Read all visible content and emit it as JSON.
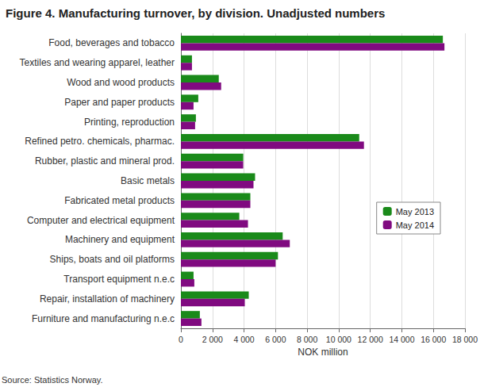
{
  "chart_data": {
    "type": "bar",
    "orientation": "horizontal",
    "title": "Figure 4. Manufacturing turnover, by division. Unadjusted numbers",
    "xlabel": "NOK million",
    "note": "Source: Statistics Norway.",
    "categories": [
      "Food, beverages and tobacco",
      "Textiles and wearing apparel, leather",
      "Wood and wood products",
      "Paper and paper products",
      "Printing, reproduction",
      "Refined petro. chemicals, pharmac.",
      "Rubber, plastic and mineral prod.",
      "Basic metals",
      "Fabricated metal products",
      "Computer and electrical equipment",
      "Machinery and equipment",
      "Ships, boats and oil platforms",
      "Transport equipment n.e.c",
      "Repair, installation of machinery",
      "Furniture and manufacturing n.e.c"
    ],
    "series": [
      {
        "name": "May 2013",
        "color": "#1a8a1a",
        "values": [
          16600,
          700,
          2400,
          1100,
          950,
          11300,
          3950,
          4700,
          4400,
          3700,
          6450,
          6150,
          800,
          4300,
          1200
        ]
      },
      {
        "name": "May 2014",
        "color": "#800a80",
        "values": [
          16700,
          700,
          2550,
          800,
          900,
          11600,
          3950,
          4600,
          4400,
          4250,
          6900,
          6000,
          850,
          4050,
          1300
        ]
      }
    ],
    "xlim": [
      0,
      18000
    ],
    "xticks": [
      0,
      {
        "value": 2000,
        "label": "2 000"
      },
      {
        "value": 4000,
        "label": "4 000"
      },
      {
        "value": 6000,
        "label": "6 000"
      },
      {
        "value": 8000,
        "label": "8 000"
      },
      {
        "value": 10000,
        "label": "10 000"
      },
      {
        "value": 12000,
        "label": "12 000"
      },
      {
        "value": 14000,
        "label": "14 000"
      },
      {
        "value": 16000,
        "label": "16 000"
      },
      {
        "value": 18000,
        "label": "18 000"
      }
    ],
    "grid": true,
    "legend": "right"
  }
}
